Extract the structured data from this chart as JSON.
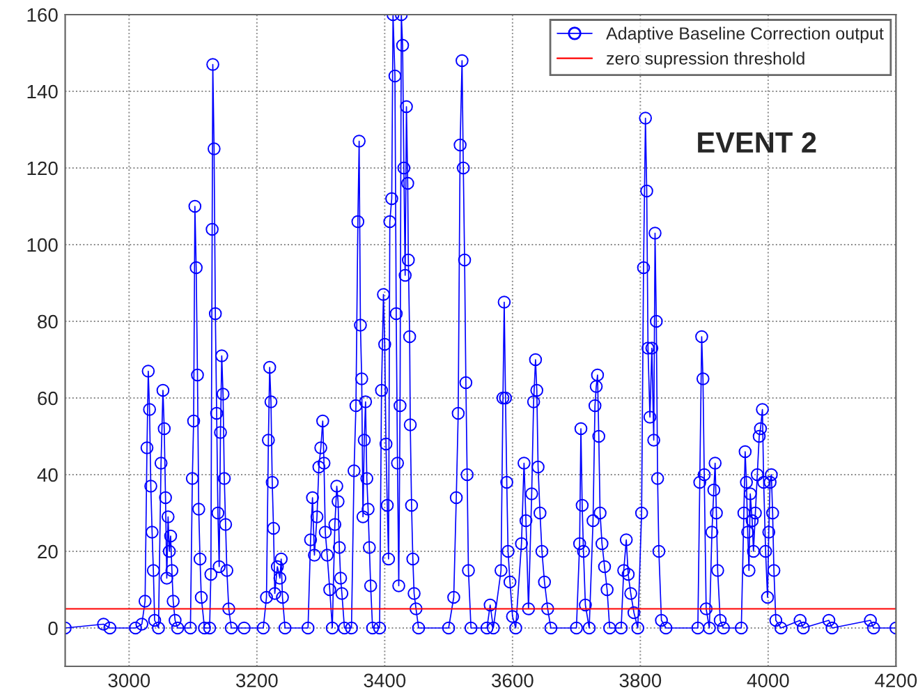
{
  "chart_data": {
    "type": "line",
    "annotations": [
      "EVENT 2"
    ],
    "xlim": [
      2900,
      4200
    ],
    "xticks": [
      3000,
      3200,
      3400,
      3600,
      3800,
      4000,
      4200
    ],
    "ylim": [
      -10,
      160
    ],
    "yticks": [
      0,
      20,
      40,
      60,
      80,
      100,
      120,
      140,
      160
    ],
    "grid": true,
    "legend": "top right",
    "marker": "circle",
    "line_style": "solid",
    "ref_lines": [
      {
        "axis": "y",
        "value": 5,
        "label": "zero supression threshold",
        "color": "#ff0000"
      }
    ],
    "series": [
      {
        "name": "Adaptive Baseline Correction output",
        "color": "#0000ff",
        "x": [
          2900,
          2960,
          2970,
          3010,
          3020,
          3025,
          3028,
          3030,
          3032,
          3034,
          3036,
          3038,
          3040,
          3046,
          3050,
          3053,
          3055,
          3057,
          3059,
          3061,
          3063,
          3065,
          3067,
          3069,
          3072,
          3076,
          3096,
          3099,
          3101,
          3103,
          3105,
          3107,
          3109,
          3111,
          3113,
          3118,
          3126,
          3128,
          3130,
          3131,
          3133,
          3135,
          3137,
          3139,
          3141,
          3143,
          3145,
          3147,
          3149,
          3151,
          3153,
          3156,
          3160,
          3180,
          3210,
          3215,
          3218,
          3220,
          3222,
          3224,
          3226,
          3228,
          3232,
          3236,
          3238,
          3240,
          3244,
          3280,
          3284,
          3287,
          3290,
          3294,
          3297,
          3300,
          3303,
          3305,
          3307,
          3310,
          3314,
          3318,
          3322,
          3325,
          3327,
          3329,
          3331,
          3333,
          3337,
          3348,
          3352,
          3355,
          3358,
          3360,
          3362,
          3364,
          3366,
          3368,
          3370,
          3372,
          3374,
          3376,
          3378,
          3381,
          3392,
          3395,
          3398,
          3400,
          3402,
          3404,
          3406,
          3408,
          3411,
          3413,
          3416,
          3418,
          3420,
          3422,
          3424,
          3426,
          3428,
          3430,
          3432,
          3434,
          3436,
          3437,
          3439,
          3440,
          3442,
          3444,
          3446,
          3449,
          3453,
          3500,
          3508,
          3512,
          3515,
          3518,
          3521,
          3523,
          3525,
          3527,
          3529,
          3531,
          3535,
          3560,
          3565,
          3570,
          3582,
          3585,
          3587,
          3589,
          3591,
          3593,
          3596,
          3600,
          3605,
          3614,
          3618,
          3621,
          3625,
          3630,
          3633,
          3636,
          3638,
          3640,
          3643,
          3646,
          3650,
          3655,
          3660,
          3700,
          3705,
          3707,
          3709,
          3711,
          3714,
          3720,
          3726,
          3729,
          3731,
          3733,
          3735,
          3737,
          3740,
          3744,
          3748,
          3752,
          3770,
          3774,
          3778,
          3781,
          3785,
          3790,
          3796,
          3802,
          3805,
          3808,
          3810,
          3812,
          3815,
          3818,
          3821,
          3823,
          3825,
          3827,
          3829,
          3833,
          3840,
          3890,
          3893,
          3896,
          3898,
          3900,
          3903,
          3908,
          3912,
          3915,
          3917,
          3919,
          3921,
          3925,
          3930,
          3958,
          3962,
          3964,
          3966,
          3968,
          3970,
          3972,
          3975,
          3977,
          3980,
          3983,
          3986,
          3988,
          3991,
          3993,
          3996,
          3999,
          4001,
          4003,
          4005,
          4007,
          4009,
          4012,
          4020,
          4050,
          4055,
          4095,
          4100,
          4160,
          4165,
          4200
        ],
        "values": [
          0,
          1,
          0,
          0,
          1,
          7,
          47,
          67,
          57,
          37,
          25,
          15,
          2,
          0,
          43,
          62,
          52,
          34,
          13,
          29,
          20,
          24,
          15,
          7,
          2,
          0,
          0,
          39,
          54,
          110,
          94,
          66,
          31,
          18,
          8,
          0,
          0,
          14,
          104,
          147,
          125,
          82,
          56,
          30,
          16,
          51,
          71,
          61,
          39,
          27,
          15,
          5,
          0,
          0,
          0,
          8,
          49,
          68,
          59,
          38,
          26,
          9,
          16,
          13,
          18,
          8,
          0,
          0,
          23,
          34,
          19,
          29,
          42,
          47,
          54,
          43,
          25,
          19,
          10,
          0,
          27,
          37,
          33,
          21,
          13,
          9,
          0,
          0,
          41,
          58,
          106,
          127,
          79,
          65,
          29,
          49,
          59,
          39,
          31,
          21,
          11,
          0,
          0,
          62,
          87,
          74,
          48,
          32,
          18,
          106,
          112,
          160,
          144,
          82,
          43,
          11,
          58,
          160,
          152,
          120,
          92,
          136,
          116,
          96,
          76,
          53,
          32,
          18,
          9,
          5,
          0,
          0,
          8,
          34,
          56,
          126,
          148,
          120,
          96,
          64,
          40,
          15,
          0,
          0,
          6,
          0,
          15,
          60,
          85,
          60,
          38,
          20,
          12,
          3,
          0,
          22,
          43,
          28,
          5,
          35,
          59,
          70,
          62,
          42,
          30,
          20,
          12,
          5,
          0,
          0,
          22,
          52,
          32,
          20,
          6,
          0,
          28,
          58,
          63,
          66,
          50,
          30,
          22,
          16,
          10,
          0,
          0,
          15,
          23,
          14,
          9,
          4,
          0,
          30,
          94,
          133,
          114,
          73,
          55,
          73,
          49,
          103,
          80,
          39,
          20,
          2,
          0,
          0,
          38,
          76,
          65,
          40,
          5,
          0,
          25,
          36,
          43,
          30,
          15,
          2,
          0,
          0,
          30,
          46,
          38,
          25,
          15,
          35,
          28,
          20,
          30,
          40,
          50,
          52,
          57,
          38,
          20,
          8,
          25,
          38,
          40,
          30,
          15,
          2,
          0,
          2,
          0,
          2,
          0,
          2,
          0,
          0
        ]
      }
    ]
  }
}
